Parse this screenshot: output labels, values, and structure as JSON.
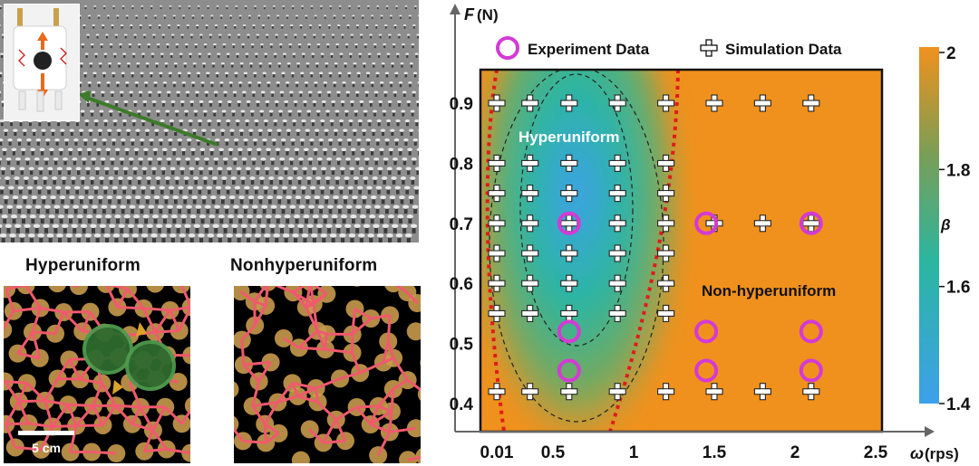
{
  "panels": {
    "hyperuniform_title": "Hyperuniform",
    "nonhyperuniform_title": "Nonhyperuniform",
    "scale_bar_label": "5 cm"
  },
  "colors": {
    "background_orange": "#f0911d",
    "experiment_marker": "#d43ad6",
    "boundary_red": "#e01b1b",
    "colorbar_low": "#3ea0ea",
    "colorbar_mid": "#2bb6a0",
    "colorbar_high": "#f0911d",
    "disk_fill": "#c79a4c",
    "bond_color": "#f05a6e"
  },
  "chart_data": {
    "type": "scatter",
    "xlabel_var": "ω",
    "xlabel_unit": "(rps)",
    "ylabel_var": "F",
    "ylabel_unit": "(N)",
    "x_ticks": [
      "0.01",
      "0.5",
      "1",
      "1.5",
      "2",
      "2.5"
    ],
    "y_ticks": [
      "0.9",
      "0.8",
      "0.7",
      "0.6",
      "0.5",
      "0.4"
    ],
    "xlim": [
      0.01,
      2.5
    ],
    "ylim": [
      0.35,
      0.96
    ],
    "legend": {
      "experiment": "Experiment Data",
      "simulation": "Simulation Data",
      "position": "top"
    },
    "region_labels": {
      "hyperuniform": "Hyperuniform",
      "nonhyperuniform": "Non-hyperuniform"
    },
    "colorbar": {
      "label": "β",
      "range": [
        1.4,
        2.0
      ],
      "ticks": [
        "2",
        "1.8",
        "1.6",
        "1.4"
      ]
    },
    "series": [
      {
        "name": "Simulation Data",
        "marker": "plus",
        "points": [
          [
            0.01,
            0.9
          ],
          [
            0.3,
            0.9
          ],
          [
            0.6,
            0.9
          ],
          [
            0.9,
            0.9
          ],
          [
            1.2,
            0.9
          ],
          [
            1.5,
            0.9
          ],
          [
            1.8,
            0.9
          ],
          [
            2.1,
            0.9
          ],
          [
            0.01,
            0.8
          ],
          [
            0.3,
            0.8
          ],
          [
            0.6,
            0.8
          ],
          [
            0.9,
            0.8
          ],
          [
            1.2,
            0.8
          ],
          [
            0.01,
            0.75
          ],
          [
            0.3,
            0.75
          ],
          [
            0.6,
            0.75
          ],
          [
            0.9,
            0.75
          ],
          [
            1.2,
            0.75
          ],
          [
            0.01,
            0.7
          ],
          [
            0.3,
            0.7
          ],
          [
            0.6,
            0.7
          ],
          [
            0.9,
            0.7
          ],
          [
            1.2,
            0.7
          ],
          [
            1.5,
            0.7
          ],
          [
            1.8,
            0.7
          ],
          [
            2.1,
            0.7
          ],
          [
            0.01,
            0.65
          ],
          [
            0.3,
            0.65
          ],
          [
            0.6,
            0.65
          ],
          [
            0.9,
            0.65
          ],
          [
            1.2,
            0.65
          ],
          [
            0.01,
            0.6
          ],
          [
            0.3,
            0.6
          ],
          [
            0.6,
            0.6
          ],
          [
            0.9,
            0.6
          ],
          [
            1.2,
            0.6
          ],
          [
            0.01,
            0.55
          ],
          [
            0.3,
            0.55
          ],
          [
            0.6,
            0.55
          ],
          [
            0.9,
            0.55
          ],
          [
            1.2,
            0.55
          ],
          [
            0.01,
            0.42
          ],
          [
            0.3,
            0.42
          ],
          [
            0.6,
            0.42
          ],
          [
            0.9,
            0.42
          ],
          [
            1.2,
            0.42
          ],
          [
            1.5,
            0.42
          ],
          [
            1.8,
            0.42
          ],
          [
            2.1,
            0.42
          ]
        ]
      },
      {
        "name": "Experiment Data",
        "marker": "circle",
        "points": [
          [
            0.6,
            0.7
          ],
          [
            1.45,
            0.7
          ],
          [
            2.1,
            0.7
          ],
          [
            0.6,
            0.52
          ],
          [
            1.45,
            0.52
          ],
          [
            2.1,
            0.52
          ],
          [
            0.6,
            0.455
          ],
          [
            1.45,
            0.455
          ],
          [
            2.1,
            0.455
          ]
        ]
      }
    ]
  }
}
